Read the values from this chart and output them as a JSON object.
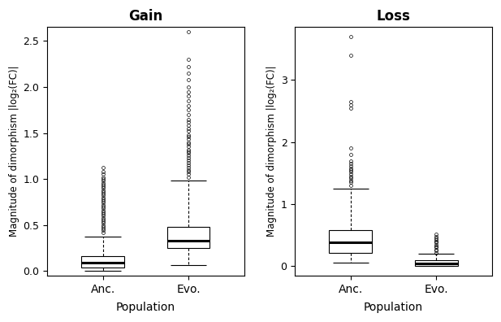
{
  "gain_anc": {
    "q1": 0.04,
    "median": 0.09,
    "q3": 0.16,
    "whisker_low": 0.0,
    "whisker_high": 0.37,
    "outliers": [
      0.42,
      0.44,
      0.46,
      0.48,
      0.5,
      0.52,
      0.54,
      0.56,
      0.58,
      0.6,
      0.62,
      0.64,
      0.66,
      0.68,
      0.7,
      0.72,
      0.74,
      0.76,
      0.78,
      0.8,
      0.82,
      0.84,
      0.86,
      0.88,
      0.9,
      0.92,
      0.94,
      0.96,
      0.98,
      1.0,
      1.02,
      1.05,
      1.08,
      1.12
    ]
  },
  "gain_evo": {
    "q1": 0.25,
    "median": 0.33,
    "q3": 0.48,
    "whisker_low": 0.06,
    "whisker_high": 0.98,
    "outliers": [
      1.02,
      1.05,
      1.08,
      1.1,
      1.12,
      1.15,
      1.18,
      1.2,
      1.23,
      1.26,
      1.28,
      1.3,
      1.32,
      1.35,
      1.38,
      1.4,
      1.43,
      1.46,
      1.48,
      1.52,
      1.55,
      1.58,
      1.62,
      1.65,
      1.7,
      1.75,
      1.8,
      1.85,
      1.9,
      1.95,
      2.0,
      2.08,
      2.15,
      2.22,
      2.3,
      2.6
    ]
  },
  "loss_anc": {
    "q1": 0.22,
    "median": 0.38,
    "q3": 0.58,
    "whisker_low": 0.06,
    "whisker_high": 1.25,
    "outliers": [
      1.3,
      1.35,
      1.38,
      1.42,
      1.45,
      1.48,
      1.52,
      1.55,
      1.58,
      1.62,
      1.65,
      1.7,
      1.8,
      1.9,
      2.55,
      2.6,
      2.65,
      3.4,
      3.7
    ]
  },
  "loss_evo": {
    "q1": 0.0,
    "median": 0.05,
    "q3": 0.1,
    "whisker_low": 0.0,
    "whisker_high": 0.2,
    "outliers": [
      0.22,
      0.25,
      0.27,
      0.3,
      0.32,
      0.35,
      0.38,
      0.4,
      0.42,
      0.45,
      0.48,
      0.52
    ]
  },
  "gain_ylim": [
    -0.05,
    2.65
  ],
  "gain_yticks": [
    0.0,
    0.5,
    1.0,
    1.5,
    2.0,
    2.5
  ],
  "loss_ylim": [
    -0.15,
    3.85
  ],
  "loss_yticks": [
    0,
    1,
    2,
    3
  ],
  "gain_title": "Gain",
  "loss_title": "Loss",
  "xlabel": "Population",
  "ylabel": "Magnitude of dimorphism |log₂(FC)|",
  "xtick_labels": [
    "Anc.",
    "Evo."
  ],
  "bg_color": "#ffffff"
}
